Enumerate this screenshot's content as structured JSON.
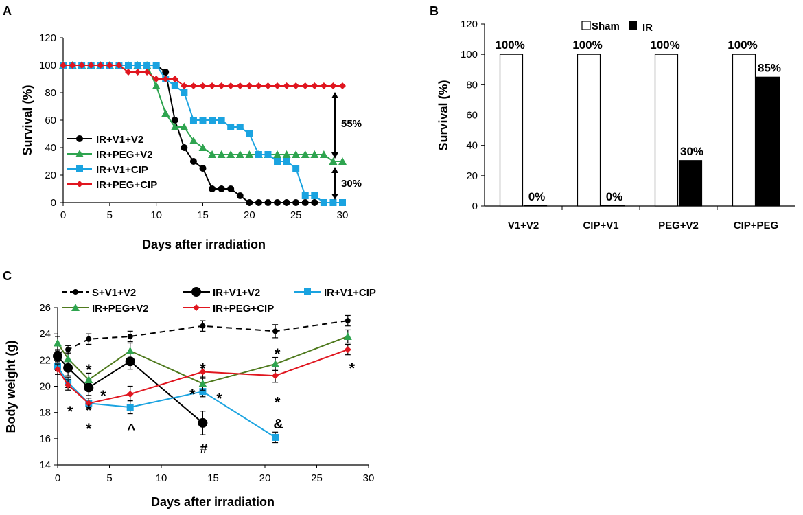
{
  "colors": {
    "black": "#000000",
    "green": "#2ea44f",
    "cyan": "#1aa3e0",
    "red": "#e0161f",
    "olive": "#4f7a1e",
    "white": "#ffffff"
  },
  "panels": {
    "A": {
      "label": "A",
      "ylabel": "Survival (%)",
      "xlabel": "Days after irradiation",
      "annotations": {
        "gap_upper": "55%",
        "gap_lower": "30%"
      }
    },
    "B": {
      "label": "B",
      "ylabel": "Survival (%)",
      "legend": {
        "sham": "Sham",
        "ir": "IR"
      }
    },
    "C": {
      "label": "C",
      "ylabel": "Body weight (g)",
      "xlabel": "Days after irradiation",
      "symbols": {
        "ast": "*",
        "caret": "^",
        "hash": "#",
        "amp": "&"
      }
    }
  },
  "chart_data": [
    {
      "id": "A",
      "type": "line",
      "xlabel": "Days after irradiation",
      "ylabel": "Survival (%)",
      "xlim": [
        0,
        30
      ],
      "ylim": [
        0,
        120
      ],
      "xticks": [
        0,
        5,
        10,
        15,
        20,
        25,
        30
      ],
      "yticks": [
        0,
        20,
        40,
        60,
        80,
        100,
        120
      ],
      "series": [
        {
          "name": "IR+V1+V2",
          "color": "#000000",
          "marker": "circle",
          "x": [
            0,
            1,
            2,
            3,
            4,
            5,
            6,
            7,
            8,
            9,
            10,
            11,
            12,
            13,
            14,
            15,
            16,
            17,
            18,
            19,
            20,
            21,
            22,
            23,
            24,
            25,
            26,
            27
          ],
          "y": [
            100,
            100,
            100,
            100,
            100,
            100,
            100,
            100,
            100,
            100,
            100,
            95,
            60,
            40,
            30,
            25,
            10,
            10,
            10,
            5,
            0,
            0,
            0,
            0,
            0,
            0,
            0,
            0
          ]
        },
        {
          "name": "IR+PEG+V2",
          "color": "#2ea44f",
          "marker": "triangle",
          "x": [
            0,
            1,
            2,
            3,
            4,
            5,
            6,
            7,
            8,
            9,
            10,
            11,
            12,
            13,
            14,
            15,
            16,
            17,
            18,
            19,
            20,
            21,
            22,
            23,
            24,
            25,
            26,
            27,
            28,
            29,
            30
          ],
          "y": [
            100,
            100,
            100,
            100,
            100,
            100,
            100,
            100,
            100,
            100,
            85,
            65,
            55,
            55,
            45,
            40,
            35,
            35,
            35,
            35,
            35,
            35,
            35,
            35,
            35,
            35,
            35,
            35,
            35,
            30,
            30
          ]
        },
        {
          "name": "IR+V1+CIP",
          "color": "#1aa3e0",
          "marker": "square",
          "x": [
            0,
            1,
            2,
            3,
            4,
            5,
            6,
            7,
            8,
            9,
            10,
            11,
            12,
            13,
            14,
            15,
            16,
            17,
            18,
            19,
            20,
            21,
            22,
            23,
            24,
            25,
            26,
            27,
            28,
            29,
            30
          ],
          "y": [
            100,
            100,
            100,
            100,
            100,
            100,
            100,
            100,
            100,
            100,
            100,
            90,
            85,
            80,
            60,
            60,
            60,
            60,
            55,
            55,
            50,
            35,
            35,
            30,
            30,
            25,
            5,
            5,
            0,
            0,
            0
          ]
        },
        {
          "name": "IR+PEG+CIP",
          "color": "#e0161f",
          "marker": "diamond",
          "x": [
            0,
            1,
            2,
            3,
            4,
            5,
            6,
            7,
            8,
            9,
            10,
            11,
            12,
            13,
            14,
            15,
            16,
            17,
            18,
            19,
            20,
            21,
            22,
            23,
            24,
            25,
            26,
            27,
            28,
            29,
            30
          ],
          "y": [
            100,
            100,
            100,
            100,
            100,
            100,
            100,
            95,
            95,
            95,
            90,
            90,
            90,
            85,
            85,
            85,
            85,
            85,
            85,
            85,
            85,
            85,
            85,
            85,
            85,
            85,
            85,
            85,
            85,
            85,
            85
          ]
        }
      ],
      "annotations": [
        "55%",
        "30%"
      ]
    },
    {
      "id": "B",
      "type": "bar",
      "ylabel": "Survival (%)",
      "ylim": [
        0,
        120
      ],
      "yticks": [
        0,
        20,
        40,
        60,
        80,
        100,
        120
      ],
      "categories": [
        "V1+V2",
        "CIP+V1",
        "PEG+V2",
        "CIP+PEG"
      ],
      "series": [
        {
          "name": "Sham",
          "fill": "#ffffff",
          "values": [
            100,
            100,
            100,
            100
          ],
          "labels": [
            "100%",
            "100%",
            "100%",
            "100%"
          ]
        },
        {
          "name": "IR",
          "fill": "#000000",
          "values": [
            0,
            0,
            30,
            85
          ],
          "labels": [
            "0%",
            "0%",
            "30%",
            "85%"
          ]
        }
      ]
    },
    {
      "id": "C",
      "type": "line",
      "xlabel": "Days after irradiation",
      "ylabel": "Body weight (g)",
      "xlim": [
        0,
        30
      ],
      "ylim": [
        14,
        26
      ],
      "xticks": [
        0,
        5,
        10,
        15,
        20,
        25,
        30
      ],
      "yticks": [
        14,
        16,
        18,
        20,
        22,
        24,
        26
      ],
      "series": [
        {
          "name": "S+V1+V2",
          "color": "#000000",
          "dashed": true,
          "marker": "circle-small",
          "x": [
            0,
            1,
            3,
            7,
            14,
            21,
            28
          ],
          "y": [
            22.5,
            22.8,
            23.6,
            23.8,
            24.6,
            24.2,
            25.0
          ],
          "err": [
            0.3,
            0.3,
            0.4,
            0.4,
            0.4,
            0.5,
            0.4
          ]
        },
        {
          "name": "IR+V1+V2",
          "color": "#000000",
          "marker": "circle-large",
          "x": [
            0,
            1,
            3,
            7,
            14
          ],
          "y": [
            22.3,
            21.4,
            19.9,
            21.9,
            17.2
          ],
          "err": [
            0.4,
            0.6,
            0.6,
            0.6,
            0.9
          ]
        },
        {
          "name": "IR+V1+CIP",
          "color": "#1aa3e0",
          "marker": "square",
          "x": [
            0,
            1,
            3,
            7,
            14,
            21
          ],
          "y": [
            21.5,
            20.3,
            18.7,
            18.4,
            19.6,
            16.1
          ],
          "err": [
            0.3,
            0.4,
            0.4,
            0.5,
            0.4,
            0.4
          ]
        },
        {
          "name": "IR+PEG+V2",
          "color": "#4f7a1e",
          "marker_color": "#2ea44f",
          "marker": "triangle",
          "x": [
            0,
            1,
            3,
            7,
            14,
            21,
            28
          ],
          "y": [
            23.3,
            22.1,
            20.5,
            22.7,
            20.2,
            21.7,
            23.8
          ],
          "err": [
            0.5,
            0.5,
            0.5,
            0.6,
            0.5,
            0.5,
            0.5
          ]
        },
        {
          "name": "IR+PEG+CIP",
          "color": "#e0161f",
          "marker": "diamond",
          "x": [
            0,
            1,
            3,
            7,
            14,
            21,
            28
          ],
          "y": [
            21.3,
            20.1,
            18.7,
            19.4,
            21.1,
            20.8,
            22.8
          ],
          "err": [
            0.4,
            0.4,
            0.4,
            0.6,
            0.5,
            0.5,
            0.4
          ]
        }
      ],
      "annotations": [
        {
          "text": "*",
          "x": 3,
          "y": 21.6
        },
        {
          "text": "*",
          "x": 4.4,
          "y": 19.6
        },
        {
          "text": "*",
          "x": 1.2,
          "y": 18.4
        },
        {
          "text": "*",
          "x": 3,
          "y": 18.5
        },
        {
          "text": "*",
          "x": 3,
          "y": 17.1
        },
        {
          "text": "^",
          "x": 7.1,
          "y": 16.8
        },
        {
          "text": "*",
          "x": 14,
          "y": 21.7
        },
        {
          "text": "*",
          "x": 13,
          "y": 19.7
        },
        {
          "text": "*",
          "x": 15.6,
          "y": 19.4
        },
        {
          "text": "#",
          "x": 14.1,
          "y": 15.3
        },
        {
          "text": "*",
          "x": 21.2,
          "y": 22.8
        },
        {
          "text": "*",
          "x": 21.2,
          "y": 19.1
        },
        {
          "text": "&",
          "x": 21.3,
          "y": 17.2
        },
        {
          "text": "*",
          "x": 28.4,
          "y": 21.7
        }
      ]
    }
  ]
}
